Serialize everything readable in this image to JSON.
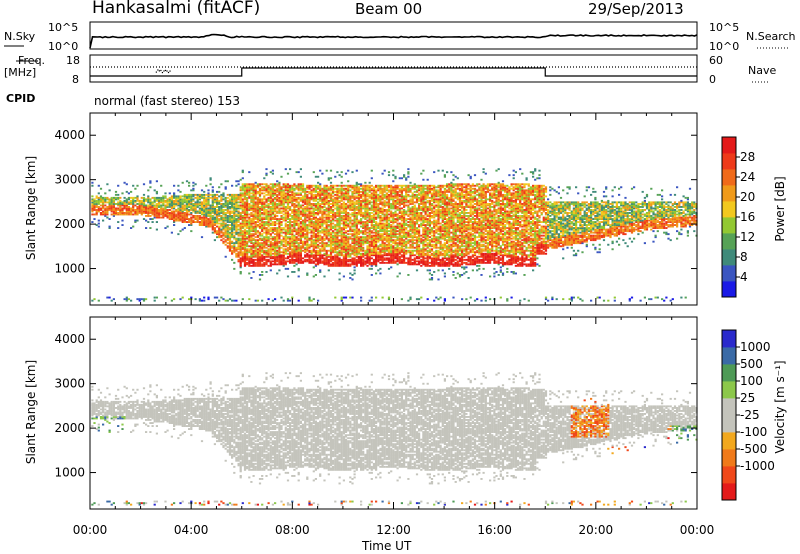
{
  "header": {
    "station": "Hankasalmi (fitACF)",
    "beam": "Beam 00",
    "date": "29/Sep/2013"
  },
  "strips": {
    "nsky_label": "N.Sky",
    "nsky_ticks": [
      "10^5",
      "10^0"
    ],
    "nsearch_label": "N.Search",
    "nsearch_ticks": [
      "10^5",
      "10^0"
    ],
    "freq_label": "Freq.",
    "freq_unit": "[MHz]",
    "freq_ticks": [
      "18",
      "8"
    ],
    "nave_label": "Nave",
    "nave_ticks": [
      "60",
      "0"
    ],
    "cpid_label": "CPID",
    "cpid_text": "normal (fast stereo) 153"
  },
  "colors": {
    "power_scale": [
      "#1a1ae6",
      "#3a55c0",
      "#3f8a7a",
      "#56a256",
      "#92c832",
      "#f2c81e",
      "#f09a1a",
      "#f06a1a",
      "#ee3a1a",
      "#e41a1a"
    ],
    "velocity_scale": [
      "#e41a1a",
      "#f0481a",
      "#f07a1a",
      "#f2a81e",
      "#c4c4bc",
      "#c4c4bc",
      "#8cc84a",
      "#4e9a56",
      "#3a6aa6",
      "#2a2acc"
    ],
    "ground_scatter": "#c4c4bc"
  },
  "chart_data": [
    {
      "type": "heatmap",
      "panel": "power",
      "xlabel": "",
      "ylabel": "Slant Range [km]",
      "x_range": [
        "00:00",
        "24:00"
      ],
      "ylim": [
        180,
        4500
      ],
      "y_ticks": [
        "1000",
        "2000",
        "3000",
        "4000"
      ],
      "colorbar": {
        "label": "Power [dB]",
        "range": [
          0,
          32
        ],
        "ticks": [
          "4",
          "8",
          "12",
          "16",
          "20",
          "24",
          "28"
        ]
      },
      "echo_bands_km": [
        {
          "hours": [
            0,
            5.9
          ],
          "lower_range": [
            2200,
            2500
          ],
          "upper_range": [
            2500,
            2750
          ],
          "power_db": [
            14,
            22
          ]
        },
        {
          "hours": [
            5.9,
            18
          ],
          "lower_range": [
            1000,
            1400
          ],
          "upper_range": [
            2400,
            2900
          ],
          "power_db": [
            16,
            30
          ]
        },
        {
          "hours": [
            18,
            24
          ],
          "lower_range": [
            1100,
            1900
          ],
          "upper_range": [
            2100,
            2600
          ],
          "power_db": [
            8,
            22
          ]
        }
      ]
    },
    {
      "type": "heatmap",
      "panel": "velocity",
      "xlabel": "Time UT",
      "ylabel": "Slant Range [km]",
      "x_range": [
        "00:00",
        "24:00"
      ],
      "x_ticks": [
        "00:00",
        "04:00",
        "08:00",
        "12:00",
        "16:00",
        "20:00",
        "00:00"
      ],
      "ylim": [
        180,
        4500
      ],
      "y_ticks": [
        "1000",
        "2000",
        "3000",
        "4000"
      ],
      "colorbar": {
        "label": "Velocity [m s⁻¹]",
        "ticks": [
          "1000",
          "500",
          "100",
          "25",
          "-25",
          "-100",
          "-500",
          "-1000"
        ]
      }
    }
  ]
}
